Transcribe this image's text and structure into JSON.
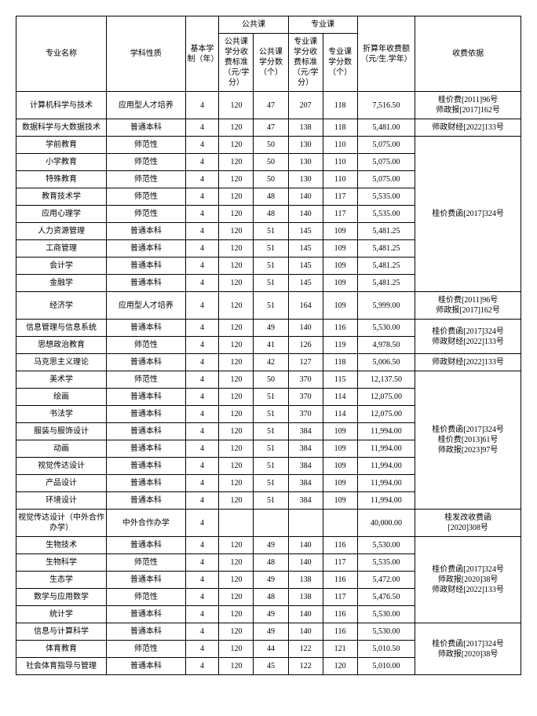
{
  "headers": {
    "major": "专业名称",
    "type": "学科性质",
    "years": "基本学制（年）",
    "public_group": "公共课",
    "pro_group": "专业课",
    "pub_fee": "公共课学分收费标准（元/学分）",
    "pub_credits": "公共课学分数（个）",
    "pro_fee": "专业课学分收费标准（元/学分）",
    "pro_credits": "专业课学分数（个）",
    "annual": "折算年收费额（元/生.学年）",
    "basis": "收费依据"
  },
  "rows": [
    {
      "id": 0,
      "major": "计算机科学与技术",
      "type": "应用型人才培养",
      "years": "4",
      "pub_fee": "120",
      "pub_credits": "47",
      "pro_fee": "207",
      "pro_credits": "118",
      "annual": "7,516.50",
      "basis": "桂价费[2011]96号\n师政报[2017]162号",
      "basis_span": 1
    },
    {
      "id": 1,
      "major": "数据科学与大数据技术",
      "type": "普通本科",
      "years": "4",
      "pub_fee": "120",
      "pub_credits": "47",
      "pro_fee": "138",
      "pro_credits": "118",
      "annual": "5,481.00",
      "basis": "师政财经[2022]133号",
      "basis_span": 1
    },
    {
      "id": 2,
      "major": "学前教育",
      "type": "师范性",
      "years": "4",
      "pub_fee": "120",
      "pub_credits": "50",
      "pro_fee": "130",
      "pro_credits": "110",
      "annual": "5,075.00",
      "basis": "桂价费函[2017]324号",
      "basis_span": 9
    },
    {
      "id": 3,
      "major": "小学教育",
      "type": "师范性",
      "years": "4",
      "pub_fee": "120",
      "pub_credits": "50",
      "pro_fee": "130",
      "pro_credits": "110",
      "annual": "5,075.00"
    },
    {
      "id": 4,
      "major": "特殊教育",
      "type": "师范性",
      "years": "4",
      "pub_fee": "120",
      "pub_credits": "50",
      "pro_fee": "130",
      "pro_credits": "110",
      "annual": "5,075.00"
    },
    {
      "id": 5,
      "major": "教育技术学",
      "type": "师范性",
      "years": "4",
      "pub_fee": "120",
      "pub_credits": "48",
      "pro_fee": "140",
      "pro_credits": "117",
      "annual": "5,535.00"
    },
    {
      "id": 6,
      "major": "应用心理学",
      "type": "师范性",
      "years": "4",
      "pub_fee": "120",
      "pub_credits": "48",
      "pro_fee": "140",
      "pro_credits": "117",
      "annual": "5,535.00"
    },
    {
      "id": 7,
      "major": "人力资源管理",
      "type": "普通本科",
      "years": "4",
      "pub_fee": "120",
      "pub_credits": "51",
      "pro_fee": "145",
      "pro_credits": "109",
      "annual": "5,481.25"
    },
    {
      "id": 8,
      "major": "工商管理",
      "type": "普通本科",
      "years": "4",
      "pub_fee": "120",
      "pub_credits": "51",
      "pro_fee": "145",
      "pro_credits": "109",
      "annual": "5,481.25"
    },
    {
      "id": 9,
      "major": "会计学",
      "type": "普通本科",
      "years": "4",
      "pub_fee": "120",
      "pub_credits": "51",
      "pro_fee": "145",
      "pro_credits": "109",
      "annual": "5,481.25"
    },
    {
      "id": 10,
      "major": "金融学",
      "type": "普通本科",
      "years": "4",
      "pub_fee": "120",
      "pub_credits": "51",
      "pro_fee": "145",
      "pro_credits": "109",
      "annual": "5,481.25"
    },
    {
      "id": 11,
      "major": "经济学",
      "type": "应用型人才培养",
      "years": "4",
      "pub_fee": "120",
      "pub_credits": "51",
      "pro_fee": "164",
      "pro_credits": "109",
      "annual": "5,999.00",
      "basis": "桂价费[2011]96号\n师政报[2017]162号",
      "basis_span": 1
    },
    {
      "id": 12,
      "major": "信息管理与信息系统",
      "type": "普通本科",
      "years": "4",
      "pub_fee": "120",
      "pub_credits": "49",
      "pro_fee": "140",
      "pro_credits": "116",
      "annual": "5,530.00",
      "basis": "桂价费函[2017]324号\n师政财经[2022]133号",
      "basis_span": 2
    },
    {
      "id": 13,
      "major": "思想政治教育",
      "type": "师范性",
      "years": "4",
      "pub_fee": "120",
      "pub_credits": "41",
      "pro_fee": "126",
      "pro_credits": "119",
      "annual": "4,978.50"
    },
    {
      "id": 14,
      "major": "马克思主义理论",
      "type": "普通本科",
      "years": "4",
      "pub_fee": "120",
      "pub_credits": "42",
      "pro_fee": "127",
      "pro_credits": "118",
      "annual": "5,006.50",
      "basis": "师政财经[2022]133号",
      "basis_span": 1
    },
    {
      "id": 15,
      "major": "美术学",
      "type": "师范性",
      "years": "4",
      "pub_fee": "120",
      "pub_credits": "50",
      "pro_fee": "370",
      "pro_credits": "115",
      "annual": "12,137.50",
      "basis": "桂价费函[2017]324号\n桂价费[2013]61号\n师政报[2023]97号",
      "basis_span": 8
    },
    {
      "id": 16,
      "major": "绘画",
      "type": "普通本科",
      "years": "4",
      "pub_fee": "120",
      "pub_credits": "51",
      "pro_fee": "370",
      "pro_credits": "114",
      "annual": "12,075.00"
    },
    {
      "id": 17,
      "major": "书法学",
      "type": "普通本科",
      "years": "4",
      "pub_fee": "120",
      "pub_credits": "51",
      "pro_fee": "370",
      "pro_credits": "114",
      "annual": "12,075.00"
    },
    {
      "id": 18,
      "major": "服装与服饰设计",
      "type": "普通本科",
      "years": "4",
      "pub_fee": "120",
      "pub_credits": "51",
      "pro_fee": "384",
      "pro_credits": "109",
      "annual": "11,994.00"
    },
    {
      "id": 19,
      "major": "动画",
      "type": "普通本科",
      "years": "4",
      "pub_fee": "120",
      "pub_credits": "51",
      "pro_fee": "384",
      "pro_credits": "109",
      "annual": "11,994.00"
    },
    {
      "id": 20,
      "major": "视觉传达设计",
      "type": "普通本科",
      "years": "4",
      "pub_fee": "120",
      "pub_credits": "51",
      "pro_fee": "384",
      "pro_credits": "109",
      "annual": "11,994.00"
    },
    {
      "id": 21,
      "major": "产品设计",
      "type": "普通本科",
      "years": "4",
      "pub_fee": "120",
      "pub_credits": "51",
      "pro_fee": "384",
      "pro_credits": "109",
      "annual": "11,994.00"
    },
    {
      "id": 22,
      "major": "环境设计",
      "type": "普通本科",
      "years": "4",
      "pub_fee": "120",
      "pub_credits": "51",
      "pro_fee": "384",
      "pro_credits": "109",
      "annual": "11,994.00"
    },
    {
      "id": 23,
      "major": "视觉传达设计（中外合作办学）",
      "type": "中外合作办学",
      "years": "4",
      "pub_fee": "",
      "pub_credits": "",
      "pro_fee": "",
      "pro_credits": "",
      "annual": "40,000.00",
      "basis": "桂发改收费函\n[2020]308号",
      "basis_span": 1
    },
    {
      "id": 24,
      "major": "生物技术",
      "type": "普通本科",
      "years": "4",
      "pub_fee": "120",
      "pub_credits": "49",
      "pro_fee": "140",
      "pro_credits": "116",
      "annual": "5,530.00",
      "basis": "桂价费函[2017]324号\n师政报[2020]38号\n师政财经[2022]133号",
      "basis_span": 5
    },
    {
      "id": 25,
      "major": "生物科学",
      "type": "师范性",
      "years": "4",
      "pub_fee": "120",
      "pub_credits": "48",
      "pro_fee": "140",
      "pro_credits": "117",
      "annual": "5,535.00"
    },
    {
      "id": 26,
      "major": "生态学",
      "type": "普通本科",
      "years": "4",
      "pub_fee": "120",
      "pub_credits": "49",
      "pro_fee": "138",
      "pro_credits": "116",
      "annual": "5,472.00"
    },
    {
      "id": 27,
      "major": "数学与应用数学",
      "type": "师范性",
      "years": "4",
      "pub_fee": "120",
      "pub_credits": "48",
      "pro_fee": "138",
      "pro_credits": "117",
      "annual": "5,476.50"
    },
    {
      "id": 28,
      "major": "统计学",
      "type": "普通本科",
      "years": "4",
      "pub_fee": "120",
      "pub_credits": "49",
      "pro_fee": "140",
      "pro_credits": "116",
      "annual": "5,530.00"
    },
    {
      "id": 29,
      "major": "信息与计算科学",
      "type": "普通本科",
      "years": "4",
      "pub_fee": "120",
      "pub_credits": "49",
      "pro_fee": "140",
      "pro_credits": "116",
      "annual": "5,530.00",
      "basis": "桂价费函[2017]324号\n师政报[2020]38号",
      "basis_span": 3
    },
    {
      "id": 30,
      "major": "体育教育",
      "type": "师范性",
      "years": "4",
      "pub_fee": "120",
      "pub_credits": "44",
      "pro_fee": "122",
      "pro_credits": "121",
      "annual": "5,010.50"
    },
    {
      "id": 31,
      "major": "社会体育指导与管理",
      "type": "普通本科",
      "years": "4",
      "pub_fee": "120",
      "pub_credits": "45",
      "pro_fee": "122",
      "pro_credits": "120",
      "annual": "5,010.00"
    }
  ]
}
